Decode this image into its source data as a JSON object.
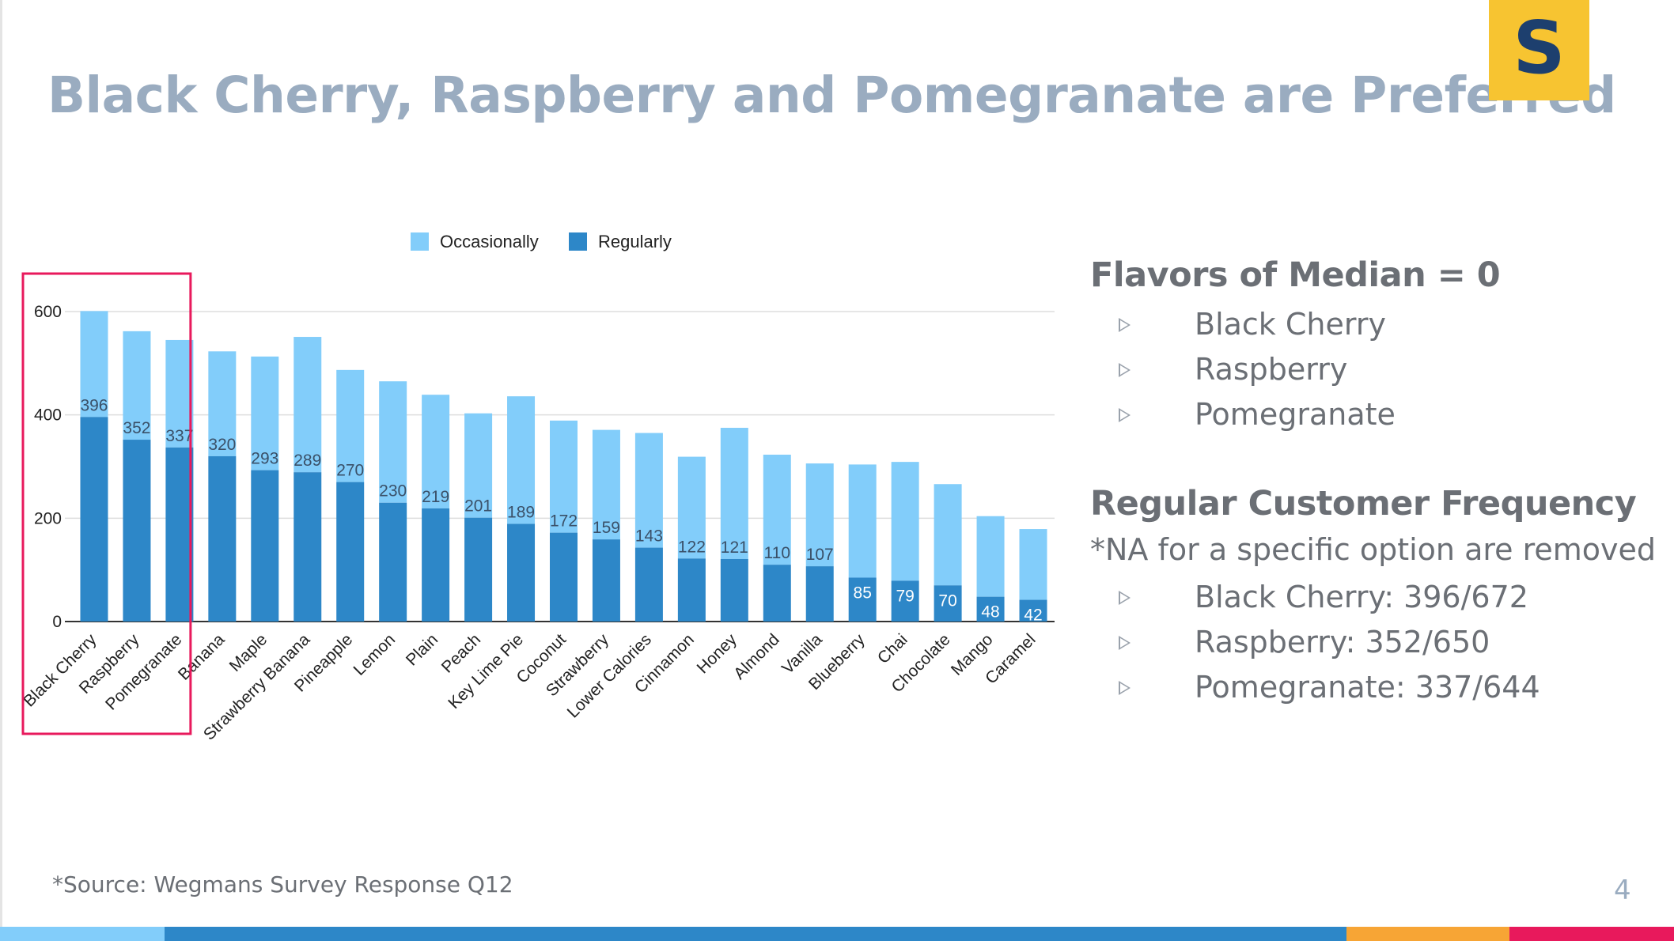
{
  "slide": {
    "title": "Black Cherry, Raspberry and Pomegranate are Preferred",
    "logo_letter": "S",
    "page_number": "4",
    "source": "*Source:  Wegmans Survey Response Q12"
  },
  "panel": {
    "heading1": "Flavors of Median = 0",
    "list1": [
      "Black Cherry",
      "Raspberry",
      "Pomegranate"
    ],
    "heading2": "Regular Customer Frequency",
    "note": "*NA for a specific option are removed",
    "list2": [
      "Black Cherry: 396/672",
      "Raspberry: 352/650",
      "Pomegranate: 337/644"
    ]
  },
  "colors": {
    "occasionally": "#82cdfa",
    "regularly": "#2d87c8",
    "title": "#9aacc0",
    "highlight": "#e8195c",
    "logo_bg": "#f7c431",
    "logo_fg": "#1d3f6e",
    "footer": [
      "#82cdfa",
      "#2d87c8",
      "#f7a535",
      "#e8195c"
    ]
  },
  "chart_data": {
    "type": "bar",
    "stacked": true,
    "categories": [
      "Black Cherry",
      "Raspberry",
      "Pomegranate",
      "Banana",
      "Maple",
      "Strawberry Banana",
      "Pineapple",
      "Lemon",
      "Plain",
      "Peach",
      "Key Lime Pie",
      "Coconut",
      "Strawberry",
      "Lower Calories",
      "Cinnamon",
      "Honey",
      "Almond",
      "Vanilla",
      "Blueberry",
      "Chai",
      "Chocolate",
      "Mango",
      "Caramel"
    ],
    "series": [
      {
        "name": "Regularly",
        "values": [
          396,
          352,
          337,
          320,
          293,
          289,
          270,
          230,
          219,
          201,
          189,
          172,
          159,
          143,
          122,
          121,
          110,
          107,
          85,
          79,
          70,
          48,
          42
        ]
      },
      {
        "name": "Occasionally",
        "values": [
          205,
          210,
          208,
          203,
          220,
          262,
          217,
          235,
          220,
          202,
          247,
          217,
          212,
          222,
          197,
          254,
          213,
          199,
          219,
          230,
          196,
          156,
          137
        ]
      }
    ],
    "data_labels": [
      "396",
      "352",
      "337",
      "320",
      "293",
      "289",
      "270",
      "230",
      "219",
      "201",
      "189",
      "172",
      "159",
      "143",
      "122",
      "121",
      "110",
      "107",
      "85",
      "79",
      "70",
      "48",
      "42"
    ],
    "yticks": [
      "0",
      "200",
      "400",
      "600"
    ],
    "ylim": [
      0,
      600
    ],
    "legend": [
      "Occasionally",
      "Regularly"
    ],
    "legend_position": "top",
    "grid": true,
    "title": "",
    "xlabel": "",
    "ylabel": "",
    "highlighted_categories": [
      "Black Cherry",
      "Raspberry",
      "Pomegranate"
    ]
  }
}
